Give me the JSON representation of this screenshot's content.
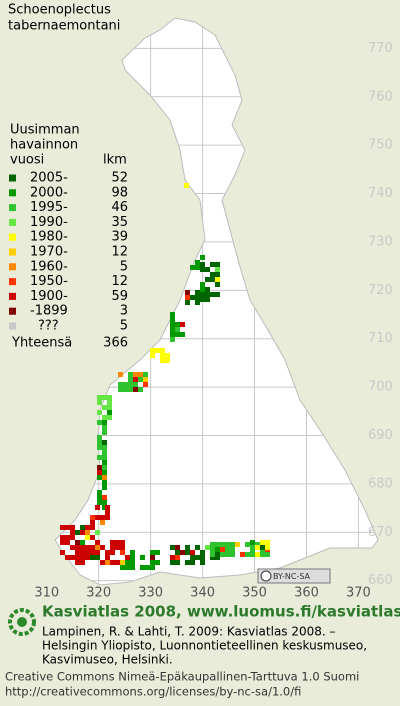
{
  "title": [
    "Schoenoplectus",
    "tabernaemontani"
  ],
  "legend": {
    "heading": [
      "Uusimman",
      "havainnon",
      "vuosi"
    ],
    "count_heading": "lkm",
    "rows": [
      {
        "label": "2005-",
        "count": 52,
        "color": "#006400"
      },
      {
        "label": "2000-",
        "count": 98,
        "color": "#009a00"
      },
      {
        "label": "1995-",
        "count": 46,
        "color": "#2fc42f"
      },
      {
        "label": "1990-",
        "count": 35,
        "color": "#66e644"
      },
      {
        "label": "1980-",
        "count": 39,
        "color": "#ffff00"
      },
      {
        "label": "1970-",
        "count": 12,
        "color": "#ffcc00"
      },
      {
        "label": "1960-",
        "count": 5,
        "color": "#ff8800"
      },
      {
        "label": "1950-",
        "count": 12,
        "color": "#ff3300"
      },
      {
        "label": "1900-",
        "count": 59,
        "color": "#cc0000"
      },
      {
        "label": "-1899",
        "count": 3,
        "color": "#800000"
      },
      {
        "label": "???",
        "count": 5,
        "color": "#c8c8c8"
      }
    ],
    "total_label": "Yhteensä",
    "total": 366
  },
  "map": {
    "xlim": [
      301,
      378
    ],
    "ylim": [
      780,
      656
    ],
    "xticks": [
      310,
      320,
      330,
      340,
      350,
      360,
      370
    ],
    "yticks": [
      770,
      760,
      750,
      740,
      730,
      720,
      710,
      700,
      690,
      680,
      670,
      660
    ]
  },
  "badge": "BY-NC-SA",
  "footer": {
    "brand": "Kasviatlas 2008, www.luomus.fi/kasviatlas",
    "citation": [
      "Lampinen, R. & Lahti, T. 2009: Kasviatlas 2008. –",
      "Helsingin Yliopisto, Luonnontieteellinen keskusmuseo,",
      "Kasvimuseo, Helsinki."
    ],
    "license": [
      "Creative Commons Nimeä-Epäkaupallinen-Tarttuva 1.0 Suomi",
      "http://creativecommons.org/licenses/by-nc-sa/1.0/fi"
    ]
  }
}
